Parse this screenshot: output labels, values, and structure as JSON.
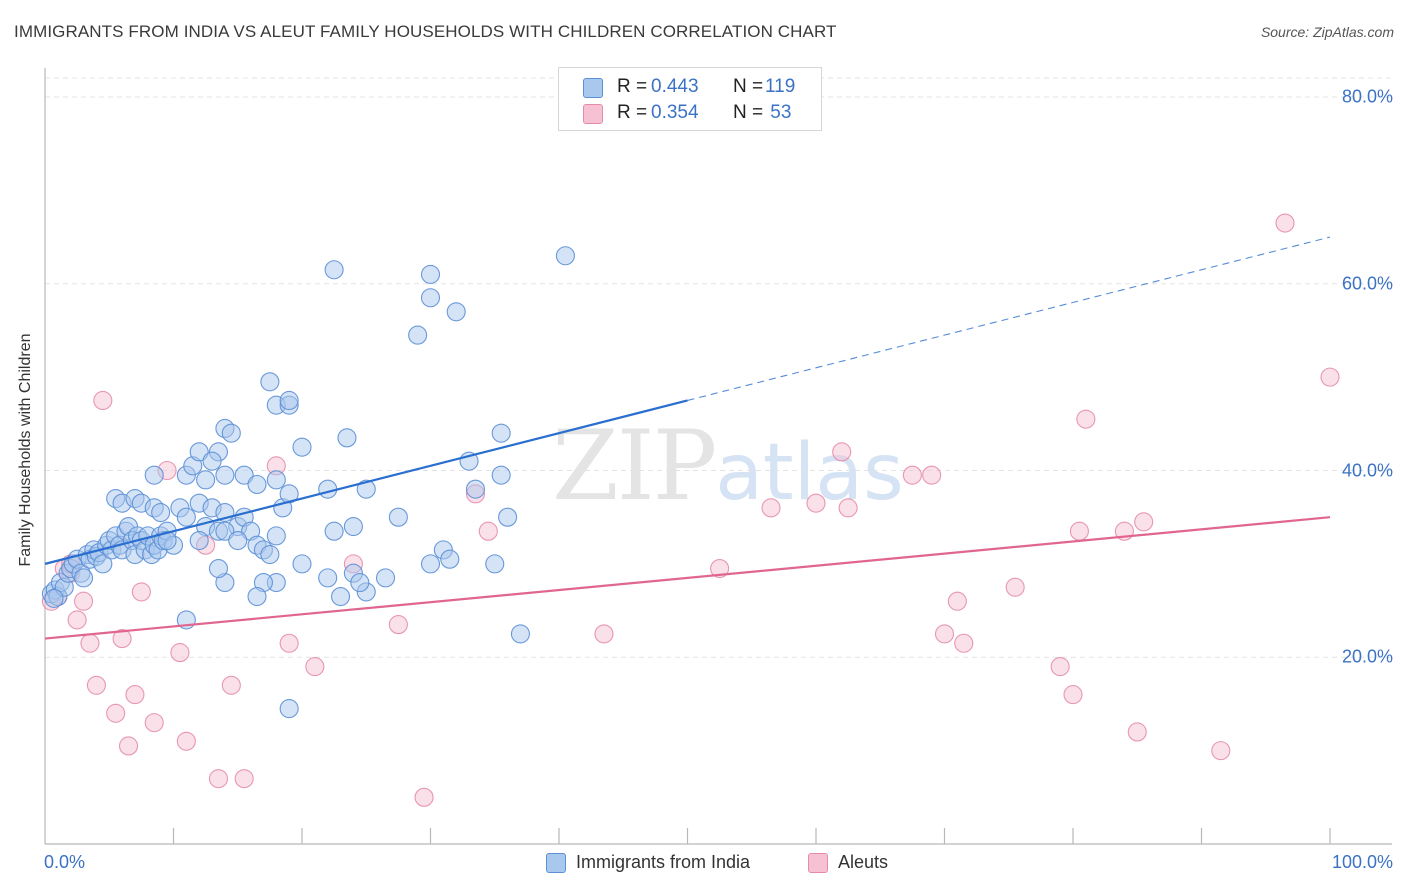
{
  "title": "IMMIGRANTS FROM INDIA VS ALEUT FAMILY HOUSEHOLDS WITH CHILDREN CORRELATION CHART",
  "source": "Source: ZipAtlas.com",
  "watermark": {
    "zip": "ZIP",
    "atlas": "atlas"
  },
  "colors": {
    "blue_fill": "#a9c8ee",
    "blue_stroke": "#5b8fd6",
    "blue_line": "#2a6fcf",
    "pink_fill": "#f6c2d3",
    "pink_stroke": "#e58cab",
    "pink_line": "#e0668f",
    "grid": "#e3e3e3",
    "tick_text": "#3b72c4"
  },
  "legend": {
    "rows": [
      {
        "r_label": "R = ",
        "r_value": "0.443",
        "n_label": "N = ",
        "n_value": "119"
      },
      {
        "r_label": "R = ",
        "r_value": "0.354",
        "n_label": "N = ",
        "n_value": " 53"
      }
    ]
  },
  "bottom_legend": {
    "series1": "Immigrants from India",
    "series2": "Aleuts"
  },
  "chart_data": {
    "type": "scatter",
    "title": "IMMIGRANTS FROM INDIA VS ALEUT FAMILY HOUSEHOLDS WITH CHILDREN CORRELATION CHART",
    "xlabel": "",
    "ylabel": "Family Households with Children",
    "xlim": [
      0,
      100
    ],
    "ylim": [
      0,
      82
    ],
    "y_ticks": [
      {
        "v": 20,
        "label": "20.0%"
      },
      {
        "v": 40,
        "label": "40.0%"
      },
      {
        "v": 60,
        "label": "60.0%"
      },
      {
        "v": 80,
        "label": "80.0%"
      }
    ],
    "x_tick_labels": [
      {
        "v": 0,
        "label": "0.0%"
      },
      {
        "v": 100,
        "label": "100.0%"
      }
    ],
    "x_minor_ticks": [
      10,
      20,
      30,
      40,
      50,
      60,
      70,
      80,
      90,
      100
    ],
    "series": [
      {
        "name": "Immigrants from India",
        "r": 0.443,
        "n": 119,
        "trend": {
          "x0": 0,
          "y0": 30.0,
          "x1": 50,
          "y1": 47.5,
          "dash_to_x": 100,
          "dash_to_y": 65.0
        },
        "points": [
          [
            0.5,
            26.8
          ],
          [
            0.8,
            27.2
          ],
          [
            1.0,
            26.5
          ],
          [
            1.2,
            28.0
          ],
          [
            1.5,
            27.5
          ],
          [
            0.7,
            26.3
          ],
          [
            1.8,
            29.0
          ],
          [
            2.0,
            29.5
          ],
          [
            2.2,
            30.0
          ],
          [
            2.5,
            30.5
          ],
          [
            2.8,
            29.0
          ],
          [
            3.0,
            28.5
          ],
          [
            3.3,
            31.0
          ],
          [
            3.5,
            30.5
          ],
          [
            3.8,
            31.5
          ],
          [
            4.0,
            30.8
          ],
          [
            4.2,
            31.2
          ],
          [
            4.5,
            30.0
          ],
          [
            4.8,
            32.0
          ],
          [
            5.0,
            32.5
          ],
          [
            5.2,
            31.5
          ],
          [
            5.5,
            33.0
          ],
          [
            5.8,
            32.0
          ],
          [
            6.0,
            31.5
          ],
          [
            6.3,
            33.5
          ],
          [
            6.5,
            34.0
          ],
          [
            6.8,
            32.5
          ],
          [
            7.0,
            31.0
          ],
          [
            7.2,
            33.0
          ],
          [
            7.5,
            32.5
          ],
          [
            7.8,
            31.5
          ],
          [
            8.0,
            33.0
          ],
          [
            8.3,
            31.0
          ],
          [
            8.5,
            32.0
          ],
          [
            8.8,
            31.5
          ],
          [
            9.0,
            33.0
          ],
          [
            9.2,
            32.5
          ],
          [
            9.5,
            33.5
          ],
          [
            10.0,
            32.0
          ],
          [
            5.5,
            37.0
          ],
          [
            6.0,
            36.5
          ],
          [
            7.0,
            37.0
          ],
          [
            7.5,
            36.5
          ],
          [
            8.5,
            36.0
          ],
          [
            9.0,
            35.5
          ],
          [
            10.5,
            36.0
          ],
          [
            11.0,
            35.0
          ],
          [
            12.0,
            36.5
          ],
          [
            12.5,
            34.0
          ],
          [
            13.0,
            36.0
          ],
          [
            13.5,
            33.5
          ],
          [
            14.0,
            35.5
          ],
          [
            15.0,
            34.0
          ],
          [
            15.5,
            35.0
          ],
          [
            16.0,
            33.5
          ],
          [
            16.5,
            32.0
          ],
          [
            17.0,
            31.5
          ],
          [
            17.5,
            31.0
          ],
          [
            18.0,
            33.0
          ],
          [
            8.5,
            39.5
          ],
          [
            11.0,
            39.5
          ],
          [
            11.5,
            40.5
          ],
          [
            12.5,
            39.0
          ],
          [
            12.0,
            42.0
          ],
          [
            13.5,
            42.0
          ],
          [
            14.0,
            39.5
          ],
          [
            13.0,
            41.0
          ],
          [
            15.5,
            39.5
          ],
          [
            16.5,
            38.5
          ],
          [
            18.0,
            39.0
          ],
          [
            18.5,
            36.0
          ],
          [
            19.0,
            37.5
          ],
          [
            20.0,
            42.5
          ],
          [
            22.0,
            38.0
          ],
          [
            22.5,
            33.5
          ],
          [
            23.5,
            43.5
          ],
          [
            24.0,
            34.0
          ],
          [
            25.0,
            38.0
          ],
          [
            14.0,
            44.5
          ],
          [
            14.5,
            44.0
          ],
          [
            17.5,
            49.5
          ],
          [
            18.0,
            47.0
          ],
          [
            19.0,
            47.0
          ],
          [
            19.0,
            47.5
          ],
          [
            24.0,
            29.0
          ],
          [
            25.0,
            27.0
          ],
          [
            24.5,
            28.0
          ],
          [
            23.0,
            26.5
          ],
          [
            22.0,
            28.5
          ],
          [
            18.0,
            28.0
          ],
          [
            17.0,
            28.0
          ],
          [
            16.5,
            26.5
          ],
          [
            14.0,
            28.0
          ],
          [
            13.5,
            29.5
          ],
          [
            11.0,
            24.0
          ],
          [
            14.0,
            33.5
          ],
          [
            15.0,
            32.5
          ],
          [
            20.0,
            30.0
          ],
          [
            12.0,
            32.5
          ],
          [
            22.5,
            61.5
          ],
          [
            29.0,
            54.5
          ],
          [
            30.0,
            58.5
          ],
          [
            30.0,
            61.0
          ],
          [
            32.0,
            57.0
          ],
          [
            33.0,
            41.0
          ],
          [
            33.5,
            38.0
          ],
          [
            35.5,
            39.5
          ],
          [
            35.5,
            44.0
          ],
          [
            36.0,
            35.0
          ],
          [
            35.0,
            30.0
          ],
          [
            31.0,
            31.5
          ],
          [
            30.0,
            30.0
          ],
          [
            27.5,
            35.0
          ],
          [
            26.5,
            28.5
          ],
          [
            31.5,
            30.5
          ],
          [
            37.0,
            22.5
          ],
          [
            40.5,
            63.0
          ],
          [
            19.0,
            14.5
          ],
          [
            9.5,
            32.5
          ]
        ]
      },
      {
        "name": "Aleuts",
        "r": 0.354,
        "n": 53,
        "trend": {
          "x0": 0,
          "y0": 22.0,
          "x1": 100,
          "y1": 35.0
        },
        "points": [
          [
            0.5,
            26.0
          ],
          [
            1.0,
            26.5
          ],
          [
            1.5,
            29.5
          ],
          [
            2.0,
            29.0
          ],
          [
            2.5,
            24.0
          ],
          [
            3.0,
            26.0
          ],
          [
            3.5,
            21.5
          ],
          [
            4.0,
            17.0
          ],
          [
            4.5,
            47.5
          ],
          [
            5.5,
            14.0
          ],
          [
            6.0,
            22.0
          ],
          [
            6.5,
            10.5
          ],
          [
            7.0,
            16.0
          ],
          [
            7.5,
            27.0
          ],
          [
            8.5,
            13.0
          ],
          [
            9.5,
            40.0
          ],
          [
            10.5,
            20.5
          ],
          [
            11.0,
            11.0
          ],
          [
            12.5,
            32.0
          ],
          [
            13.5,
            7.0
          ],
          [
            14.5,
            17.0
          ],
          [
            15.5,
            7.0
          ],
          [
            18.0,
            40.5
          ],
          [
            19.0,
            21.5
          ],
          [
            21.0,
            19.0
          ],
          [
            24.0,
            30.0
          ],
          [
            27.5,
            23.5
          ],
          [
            29.5,
            5.0
          ],
          [
            33.5,
            37.5
          ],
          [
            34.5,
            33.5
          ],
          [
            43.5,
            22.5
          ],
          [
            52.5,
            29.5
          ],
          [
            56.5,
            36.0
          ],
          [
            60.0,
            36.5
          ],
          [
            62.0,
            42.0
          ],
          [
            62.5,
            36.0
          ],
          [
            67.5,
            39.5
          ],
          [
            69.0,
            39.5
          ],
          [
            70.0,
            22.5
          ],
          [
            71.0,
            26.0
          ],
          [
            71.5,
            21.5
          ],
          [
            75.5,
            27.5
          ],
          [
            79.0,
            19.0
          ],
          [
            80.0,
            16.0
          ],
          [
            81.0,
            45.5
          ],
          [
            80.5,
            33.5
          ],
          [
            84.0,
            33.5
          ],
          [
            85.0,
            12.0
          ],
          [
            85.5,
            34.5
          ],
          [
            91.5,
            10.0
          ],
          [
            96.5,
            66.5
          ],
          [
            100.0,
            50.0
          ],
          [
            2.0,
            30.0
          ]
        ]
      }
    ]
  }
}
